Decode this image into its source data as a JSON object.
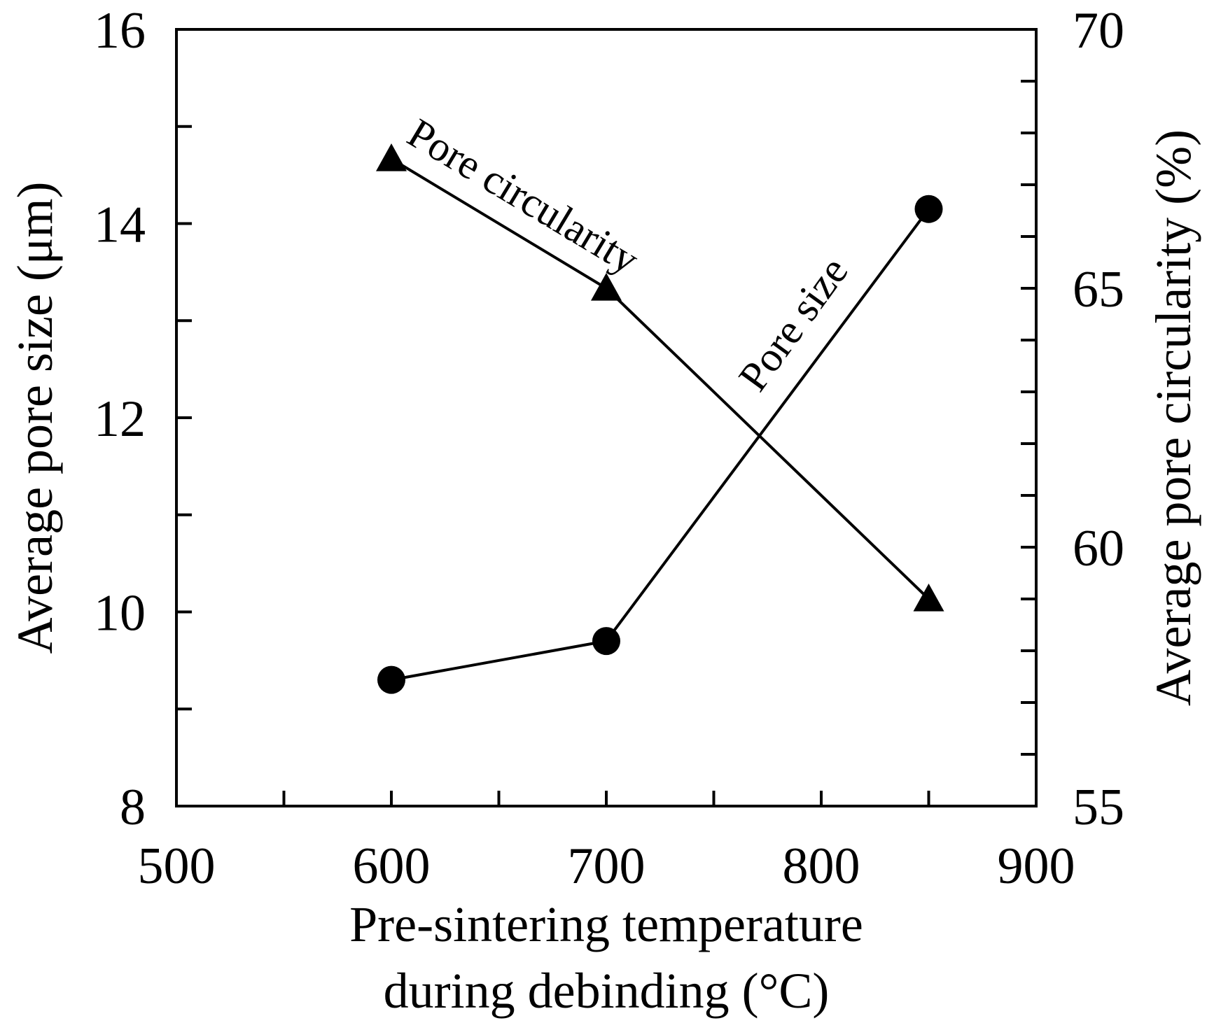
{
  "chart_data": {
    "type": "line",
    "x": [
      600,
      700,
      850
    ],
    "series": [
      {
        "name": "Pore size",
        "axis": "left",
        "marker": "circle",
        "values": [
          9.3,
          9.7,
          14.15
        ]
      },
      {
        "name": "Pore circularity",
        "axis": "right",
        "marker": "triangle",
        "values": [
          67.5,
          65.0,
          59.0
        ]
      }
    ],
    "xlim": [
      500,
      900
    ],
    "ylim_left": [
      8,
      16
    ],
    "ylim_right": [
      55,
      70
    ],
    "x_ticks": [
      "500",
      "600",
      "700",
      "800",
      "900"
    ],
    "y_left_ticks": [
      "8",
      "10",
      "12",
      "14",
      "16"
    ],
    "y_right_ticks": [
      "55",
      "60",
      "65",
      "70"
    ],
    "xlabel_line1": "Pre-sintering temperature",
    "xlabel_line2": "during debinding (°C)",
    "ylabel_left": "Average pore size (μm)",
    "ylabel_right": "Average pore circularity (%)",
    "annotations": {
      "pore_circularity": "Pore circularity",
      "pore_size": "Pore size"
    },
    "grid": false,
    "legend": "none"
  }
}
